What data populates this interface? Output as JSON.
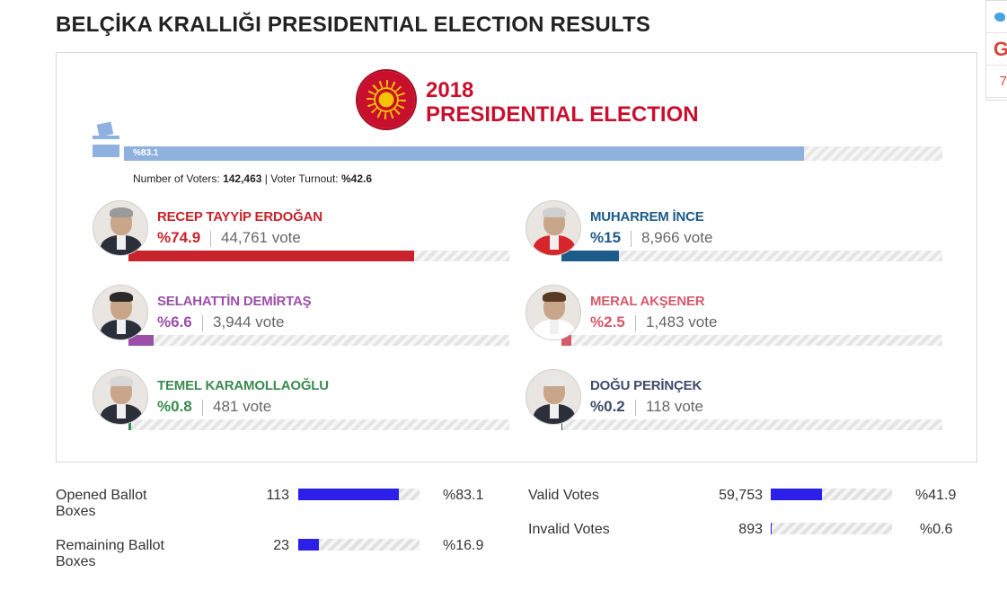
{
  "page": {
    "title": "BELÇİKA KRALLIĞI PRESIDENTIAL ELECTION RESULTS"
  },
  "social": {
    "count": "7"
  },
  "colors": {
    "accent": "#c8102e",
    "turnout": "#8fb1df",
    "stats_bar": "#2b1fe8"
  },
  "election": {
    "year": "2018",
    "name": "PRESIDENTIAL ELECTION"
  },
  "turnout": {
    "bar_label": "%83.1",
    "bar_value": 83.1,
    "voters_label": "Number of Voters:",
    "voters_value": "142,463",
    "separator": " | ",
    "turnout_label": "Voter Turnout:",
    "turnout_value": "%42.6"
  },
  "candidates": [
    {
      "name": "RECEP TAYYİP ERDOĞAN",
      "pct": "%74.9",
      "votes": "44,761 vote",
      "value": 74.9,
      "color": "#c8232c"
    },
    {
      "name": "MUHARREM İNCE",
      "pct": "%15",
      "votes": "8,966 vote",
      "value": 15,
      "color": "#1c5b8a"
    },
    {
      "name": "SELAHATTİN DEMİRTAŞ",
      "pct": "%6.6",
      "votes": "3,944 vote",
      "value": 6.6,
      "color": "#9b4fa8"
    },
    {
      "name": "MERAL AKŞENER",
      "pct": "%2.5",
      "votes": "1,483 vote",
      "value": 2.5,
      "color": "#d45a6b"
    },
    {
      "name": "TEMEL KARAMOLLAOĞLU",
      "pct": "%0.8",
      "votes": "481 vote",
      "value": 0.8,
      "color": "#3a8a4e"
    },
    {
      "name": "DOĞU PERİNÇEK",
      "pct": "%0.2",
      "votes": "118 vote",
      "value": 0.2,
      "color": "#3f4b6b"
    }
  ],
  "stats": [
    {
      "label": "Opened Ballot Boxes",
      "count": "113",
      "pct": "%83.1",
      "value": 83.1
    },
    {
      "label": "Remaining Ballot Boxes",
      "count": "23",
      "pct": "%16.9",
      "value": 16.9
    },
    {
      "label": "Valid Votes",
      "count": "59,753",
      "pct": "%41.9",
      "value": 41.9
    },
    {
      "label": "Invalid Votes",
      "count": "893",
      "pct": "%0.6",
      "value": 0.6
    }
  ]
}
